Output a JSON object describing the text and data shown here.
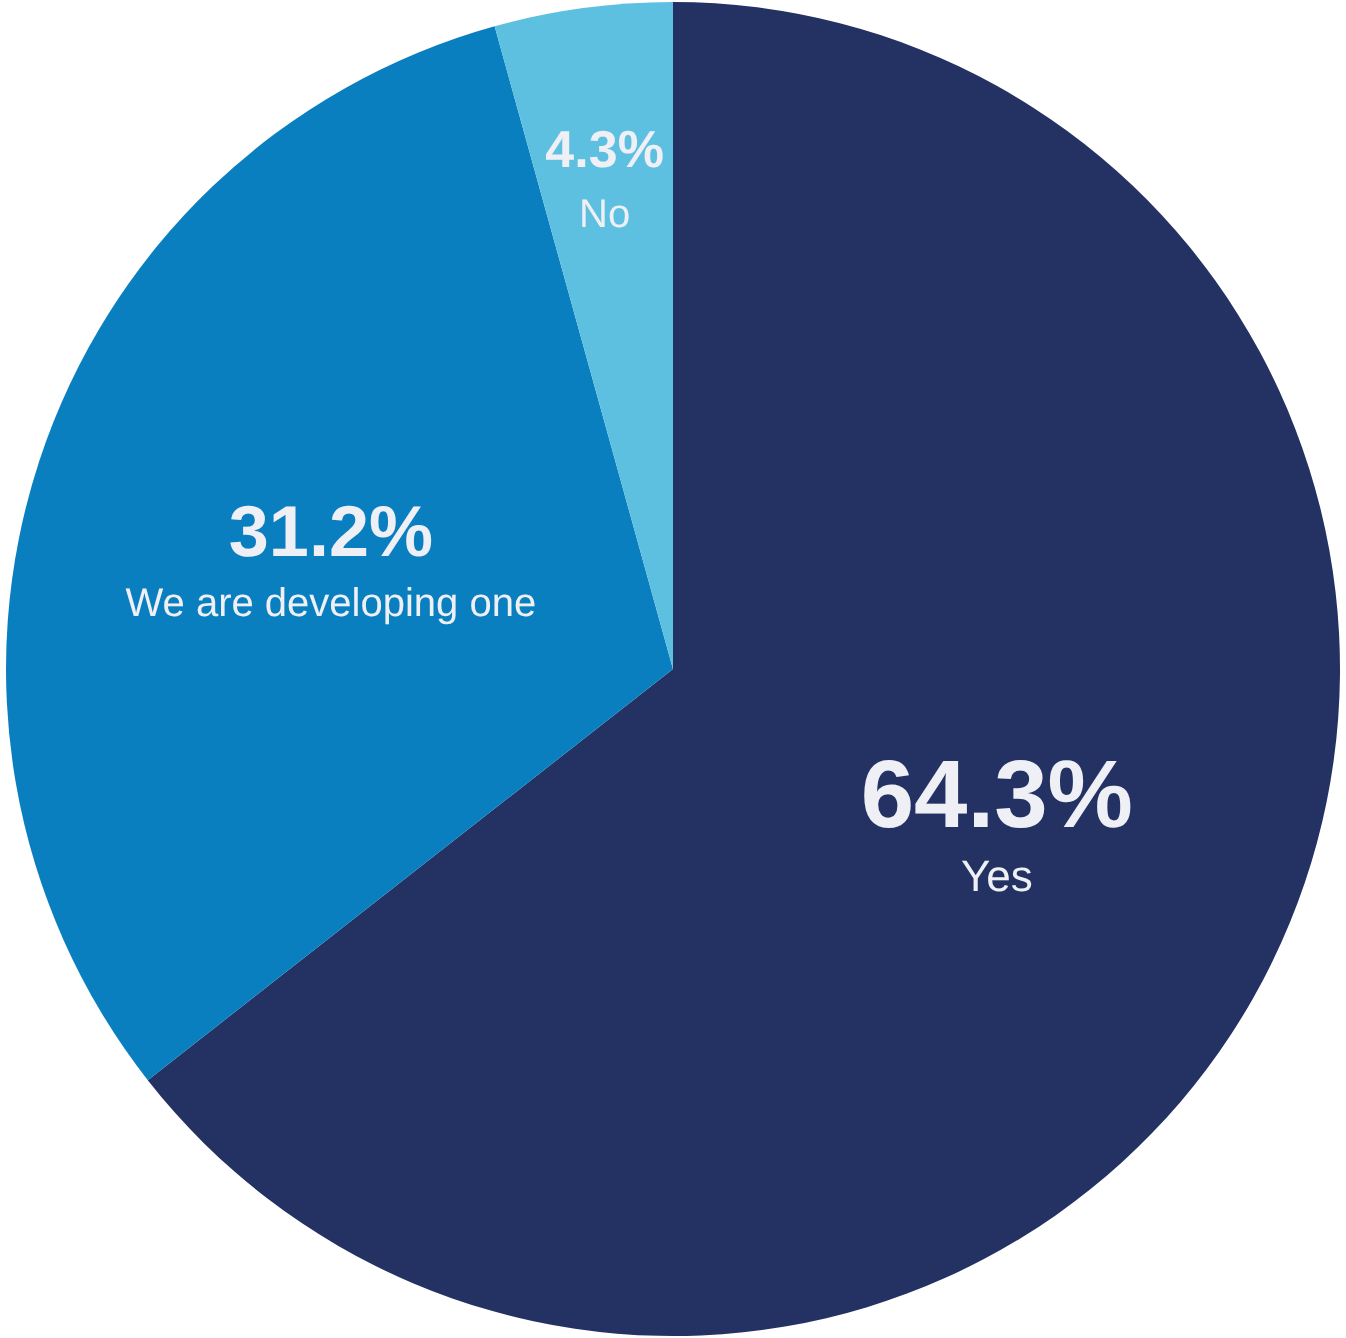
{
  "chart_data": {
    "type": "pie",
    "categories": [
      "Yes",
      "We are developing one",
      "No"
    ],
    "values": [
      64.3,
      31.2,
      4.3
    ],
    "value_labels": [
      "64.3%",
      "31.2%",
      "4.3%"
    ],
    "colors": [
      "#233263",
      "#0a7fc0",
      "#5ec0e0"
    ],
    "legend": false
  }
}
